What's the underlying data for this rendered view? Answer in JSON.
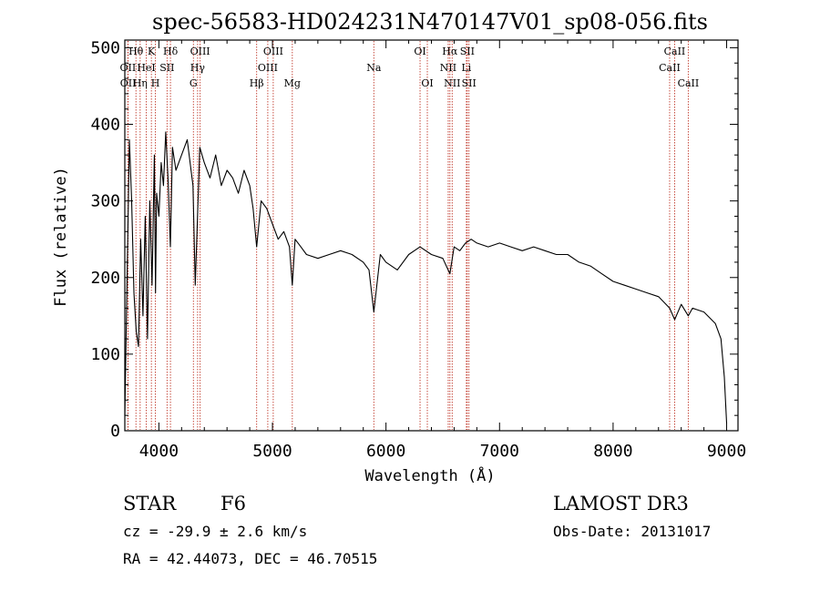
{
  "chart_data": {
    "type": "line",
    "title": "spec-56583-HD024231N470147V01_sp08-056.fits",
    "xlabel": "Wavelength (Å)",
    "ylabel": "Flux (relative)",
    "xlim": [
      3700,
      9100
    ],
    "ylim": [
      0,
      510
    ],
    "xticks": [
      4000,
      5000,
      6000,
      7000,
      8000,
      9000
    ],
    "yticks": [
      0,
      100,
      200,
      300,
      400,
      500
    ],
    "grid": false,
    "series": [
      {
        "color": "#000000",
        "x": [
          3700,
          3720,
          3740,
          3760,
          3780,
          3800,
          3820,
          3840,
          3860,
          3880,
          3900,
          3920,
          3940,
          3960,
          3970,
          3980,
          4000,
          4020,
          4040,
          4060,
          4080,
          4101,
          4120,
          4150,
          4200,
          4250,
          4300,
          4320,
          4340,
          4360,
          4400,
          4450,
          4500,
          4550,
          4600,
          4650,
          4700,
          4750,
          4800,
          4830,
          4861,
          4900,
          4950,
          5000,
          5050,
          5100,
          5150,
          5175,
          5200,
          5250,
          5300,
          5400,
          5500,
          5600,
          5700,
          5800,
          5850,
          5893,
          5950,
          6000,
          6100,
          6200,
          6300,
          6400,
          6500,
          6563,
          6600,
          6650,
          6700,
          6750,
          6800,
          6900,
          7000,
          7100,
          7200,
          7300,
          7400,
          7500,
          7600,
          7700,
          7800,
          7900,
          8000,
          8100,
          8200,
          8300,
          8400,
          8498,
          8542,
          8600,
          8662,
          8700,
          8800,
          8900,
          8950,
          8980,
          9000
        ],
        "y": [
          20,
          200,
          380,
          300,
          180,
          130,
          110,
          250,
          150,
          280,
          120,
          300,
          190,
          360,
          180,
          310,
          280,
          350,
          320,
          390,
          330,
          240,
          370,
          340,
          360,
          380,
          320,
          190,
          280,
          370,
          350,
          330,
          360,
          320,
          340,
          330,
          310,
          340,
          320,
          290,
          240,
          300,
          290,
          270,
          250,
          260,
          240,
          190,
          250,
          240,
          230,
          225,
          230,
          235,
          230,
          220,
          210,
          155,
          230,
          220,
          210,
          230,
          240,
          230,
          225,
          205,
          240,
          235,
          245,
          250,
          245,
          240,
          245,
          240,
          235,
          240,
          235,
          230,
          230,
          220,
          215,
          205,
          195,
          190,
          185,
          180,
          175,
          160,
          145,
          165,
          150,
          160,
          155,
          140,
          120,
          70,
          10
        ]
      }
    ],
    "lines": [
      {
        "label": "OII",
        "w": 3727,
        "row": 1
      },
      {
        "label": "OII",
        "w": 3729,
        "row": 2
      },
      {
        "label": "Hθ",
        "w": 3798,
        "row": 0
      },
      {
        "label": "Hη",
        "w": 3835,
        "row": 2
      },
      {
        "label": "HeI",
        "w": 3889,
        "row": 1
      },
      {
        "label": "K",
        "w": 3934,
        "row": 0
      },
      {
        "label": "H",
        "w": 3969,
        "row": 2
      },
      {
        "label": "SII",
        "w": 4072,
        "row": 1
      },
      {
        "label": "Hδ",
        "w": 4102,
        "row": 0
      },
      {
        "label": "G",
        "w": 4304,
        "row": 2
      },
      {
        "label": "Hγ",
        "w": 4341,
        "row": 1
      },
      {
        "label": "OIII",
        "w": 4363,
        "row": 0
      },
      {
        "label": "Hβ",
        "w": 4861,
        "row": 2
      },
      {
        "label": "OIII",
        "w": 4959,
        "row": 1
      },
      {
        "label": "OIII",
        "w": 5007,
        "row": 0
      },
      {
        "label": "Mg",
        "w": 5175,
        "row": 2
      },
      {
        "label": "Na",
        "w": 5893,
        "row": 1
      },
      {
        "label": "OI",
        "w": 6300,
        "row": 0
      },
      {
        "label": "OI",
        "w": 6364,
        "row": 2
      },
      {
        "label": "NII",
        "w": 6548,
        "row": 1
      },
      {
        "label": "Hα",
        "w": 6563,
        "row": 0
      },
      {
        "label": "NII",
        "w": 6583,
        "row": 2
      },
      {
        "label": "Li",
        "w": 6708,
        "row": 1
      },
      {
        "label": "SII",
        "w": 6716,
        "row": 0
      },
      {
        "label": "SII",
        "w": 6731,
        "row": 2
      },
      {
        "label": "CaII",
        "w": 8498,
        "row": 1
      },
      {
        "label": "CaII",
        "w": 8542,
        "row": 0
      },
      {
        "label": "CaII",
        "w": 8662,
        "row": 2
      }
    ]
  },
  "info": {
    "object_class": "STAR",
    "subclass": "F6",
    "survey": "LAMOST DR3",
    "cz": "cz = -29.9 ± 2.6 km/s",
    "obs_date": "Obs-Date: 20131017",
    "coords": "RA =  42.44073, DEC =  46.70515"
  },
  "colors": {
    "line_marker": "#c0392b",
    "spectrum": "#000000"
  }
}
